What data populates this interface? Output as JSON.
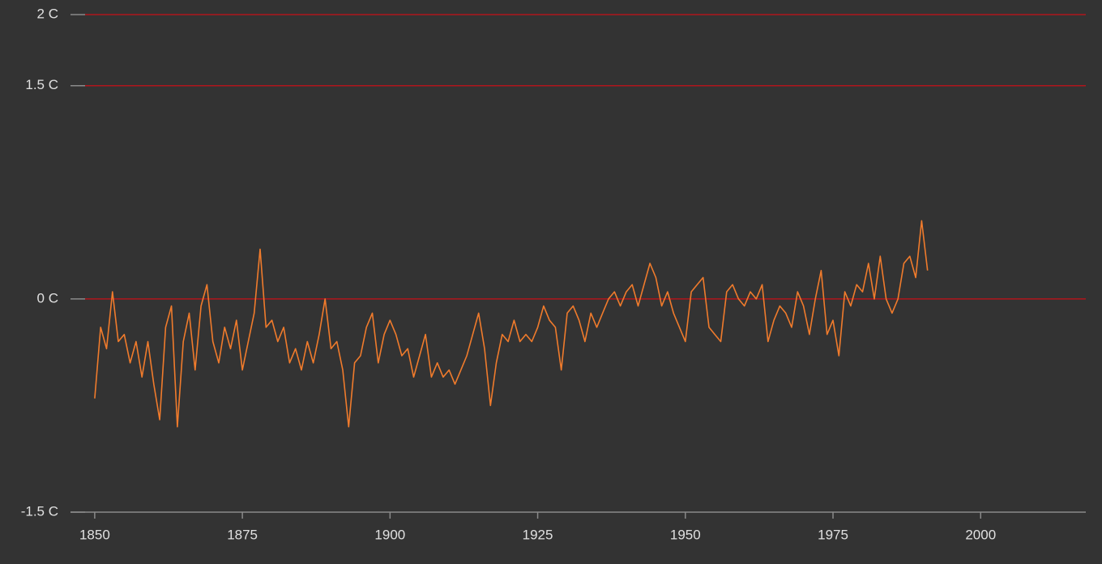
{
  "chart_data": {
    "type": "line",
    "x": [
      1850,
      1851,
      1852,
      1853,
      1854,
      1855,
      1856,
      1857,
      1858,
      1859,
      1860,
      1861,
      1862,
      1863,
      1864,
      1865,
      1866,
      1867,
      1868,
      1869,
      1870,
      1871,
      1872,
      1873,
      1874,
      1875,
      1876,
      1877,
      1878,
      1879,
      1880,
      1881,
      1882,
      1883,
      1884,
      1885,
      1886,
      1887,
      1888,
      1889,
      1890,
      1891,
      1892,
      1893,
      1894,
      1895,
      1896,
      1897,
      1898,
      1899,
      1900,
      1901,
      1902,
      1903,
      1904,
      1905,
      1906,
      1907,
      1908,
      1909,
      1910,
      1911,
      1912,
      1913,
      1914,
      1915,
      1916,
      1917,
      1918,
      1919,
      1920,
      1921,
      1922,
      1923,
      1924,
      1925,
      1926,
      1927,
      1928,
      1929,
      1930,
      1931,
      1932,
      1933,
      1934,
      1935,
      1936,
      1937,
      1938,
      1939,
      1940,
      1941,
      1942,
      1943,
      1944,
      1945,
      1946,
      1947,
      1948,
      1949,
      1950,
      1951,
      1952,
      1953,
      1954,
      1955,
      1956,
      1957,
      1958,
      1959,
      1960,
      1961,
      1962,
      1963,
      1964,
      1965,
      1966,
      1967,
      1968,
      1969,
      1970,
      1971,
      1972,
      1973,
      1974,
      1975,
      1976,
      1977,
      1978,
      1979,
      1980,
      1981,
      1982,
      1983,
      1984,
      1985,
      1986,
      1987,
      1988,
      1989,
      1990,
      1991
    ],
    "series": [
      {
        "color": "#f07b2c",
        "values": [
          -0.7,
          -0.2,
          -0.35,
          0.05,
          -0.3,
          -0.25,
          -0.45,
          -0.3,
          -0.55,
          -0.3,
          -0.6,
          -0.85,
          -0.2,
          -0.05,
          -0.9,
          -0.3,
          -0.1,
          -0.5,
          -0.05,
          0.1,
          -0.3,
          -0.45,
          -0.2,
          -0.35,
          -0.15,
          -0.5,
          -0.3,
          -0.1,
          0.35,
          -0.2,
          -0.15,
          -0.3,
          -0.2,
          -0.45,
          -0.35,
          -0.5,
          -0.3,
          -0.45,
          -0.25,
          0.0,
          -0.35,
          -0.3,
          -0.5,
          -0.9,
          -0.45,
          -0.4,
          -0.2,
          -0.1,
          -0.45,
          -0.25,
          -0.15,
          -0.25,
          -0.4,
          -0.35,
          -0.55,
          -0.4,
          -0.25,
          -0.55,
          -0.45,
          -0.55,
          -0.5,
          -0.6,
          -0.5,
          -0.4,
          -0.25,
          -0.1,
          -0.35,
          -0.75,
          -0.45,
          -0.25,
          -0.3,
          -0.15,
          -0.3,
          -0.25,
          -0.3,
          -0.2,
          -0.05,
          -0.15,
          -0.2,
          -0.5,
          -0.1,
          -0.05,
          -0.15,
          -0.3,
          -0.1,
          -0.2,
          -0.1,
          0.0,
          0.05,
          -0.05,
          0.05,
          0.1,
          -0.05,
          0.1,
          0.25,
          0.15,
          -0.05,
          0.05,
          -0.1,
          -0.2,
          -0.3,
          0.05,
          0.1,
          0.15,
          -0.2,
          -0.25,
          -0.3,
          0.05,
          0.1,
          0.0,
          -0.05,
          0.05,
          0.0,
          0.1,
          -0.3,
          -0.15,
          -0.05,
          -0.1,
          -0.2,
          0.05,
          -0.05,
          -0.25,
          0.0,
          0.2,
          -0.25,
          -0.15,
          -0.4,
          0.05,
          -0.05,
          0.1,
          0.05,
          0.25,
          0.0,
          0.3,
          0.0,
          -0.1,
          0.0,
          0.25,
          0.3,
          0.15,
          0.55,
          0.2
        ]
      }
    ],
    "xlim": [
      1845.9,
      2017.8
    ],
    "xticks": [
      1850,
      1875,
      1900,
      1925,
      1950,
      1975,
      2000
    ],
    "ylim": [
      -1.5,
      2
    ],
    "yticks": [
      {
        "value": -1.5,
        "label": "-1.5 C"
      },
      {
        "value": 0,
        "label": "0 C"
      },
      {
        "value": 1.5,
        "label": "1.5 C"
      },
      {
        "value": 2,
        "label": "2 C"
      }
    ],
    "grid": true,
    "grid_color": "#b0161c",
    "axis_color": "#8a8a8a"
  }
}
